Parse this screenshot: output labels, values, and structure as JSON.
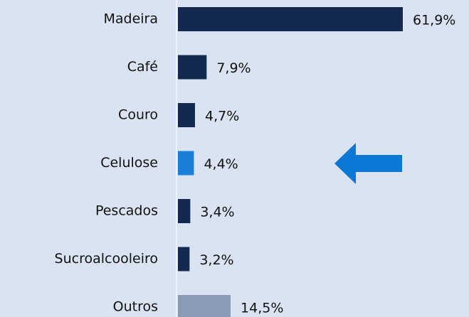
{
  "chart_data": {
    "type": "bar",
    "orientation": "horizontal",
    "categories": [
      "Madeira",
      "Café",
      "Couro",
      "Celulose",
      "Pescados",
      "Sucroalcooleiro",
      "Outros"
    ],
    "values": [
      61.9,
      7.9,
      4.7,
      4.4,
      3.4,
      3.2,
      14.5
    ],
    "value_labels": [
      "61,9%",
      "7,9%",
      "4,7%",
      "4,4%",
      "3,4%",
      "3,2%",
      "14,5%"
    ],
    "colors": [
      "#14294f",
      "#14294f",
      "#14294f",
      "#1a7fd6",
      "#14294f",
      "#14294f",
      "#8a9bb5"
    ]
  }
}
